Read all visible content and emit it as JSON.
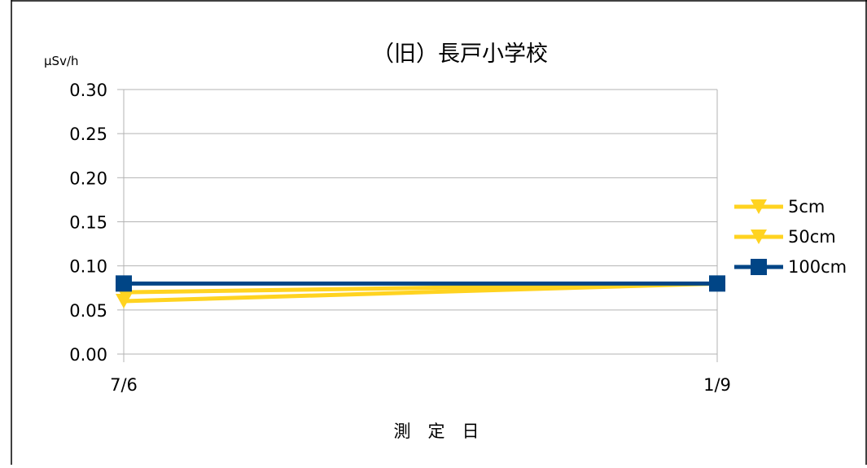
{
  "chart_data": {
    "type": "line",
    "title": "（旧）長戸小学校",
    "xlabel": "測　定　日",
    "ylabel": "μSv/h",
    "categories": [
      "7/6",
      "1/9"
    ],
    "ylim": [
      0,
      0.3
    ],
    "yticks": [
      "0.00",
      "0.05",
      "0.10",
      "0.15",
      "0.20",
      "0.25",
      "0.30"
    ],
    "ytick_values": [
      0,
      0.05,
      0.1,
      0.15,
      0.2,
      0.25,
      0.3
    ],
    "grid": true,
    "legend_position": "right",
    "series": [
      {
        "name": "5cm",
        "values": [
          0.06,
          0.08
        ],
        "color": "#FFD320",
        "marker": "triangle-down"
      },
      {
        "name": "50cm",
        "values": [
          0.07,
          0.08
        ],
        "color": "#FFD320",
        "marker": "triangle-down"
      },
      {
        "name": "100cm",
        "values": [
          0.08,
          0.08
        ],
        "color": "#004586",
        "marker": "square"
      }
    ]
  }
}
